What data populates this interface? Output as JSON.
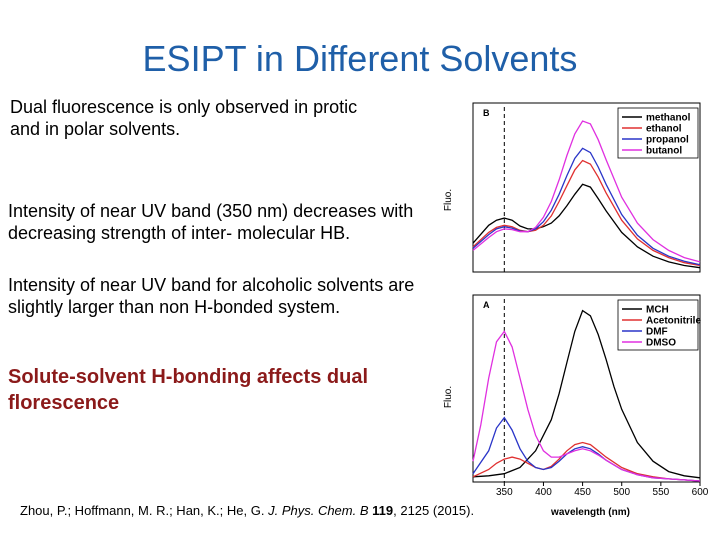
{
  "slide": {
    "title": "ESIPT in Different Solvents",
    "point1": "Dual fluorescence is only observed in protic and in polar solvents.",
    "point2": "Intensity of near UV band (350 nm) decreases with  decreasing strength of inter- molecular HB.",
    "point3": "Intensity of near UV band for alcoholic solvents are slightly larger than non H-bonded system.",
    "point4": "Solute-solvent H-bonding affects dual florescence",
    "citation": {
      "authors": "Zhou, P.; Hoffmann, M. R.; Han, K.; He, G.",
      "journal": "J. Phys. Chem. B",
      "volume": "119",
      "rest": ", 2125 (2015)."
    }
  },
  "chart_data": [
    {
      "type": "line",
      "panel_label": "B",
      "ylabel": "Fluo.",
      "xlim": [
        310,
        600
      ],
      "marker_line_x": 350,
      "series": [
        {
          "name": "methanol",
          "color": "#000000",
          "x": [
            310,
            330,
            340,
            350,
            360,
            370,
            380,
            390,
            400,
            410,
            420,
            430,
            440,
            450,
            460,
            470,
            480,
            500,
            520,
            540,
            560,
            580,
            600
          ],
          "y": [
            0.4,
            0.65,
            0.72,
            0.75,
            0.72,
            0.64,
            0.6,
            0.6,
            0.63,
            0.68,
            0.78,
            0.92,
            1.08,
            1.22,
            1.18,
            1.02,
            0.85,
            0.55,
            0.35,
            0.22,
            0.14,
            0.09,
            0.06
          ]
        },
        {
          "name": "ethanol",
          "color": "#e03030",
          "x": [
            310,
            330,
            340,
            350,
            360,
            370,
            380,
            390,
            400,
            410,
            420,
            430,
            440,
            450,
            460,
            470,
            480,
            500,
            520,
            540,
            560,
            580,
            600
          ],
          "y": [
            0.35,
            0.55,
            0.62,
            0.65,
            0.63,
            0.58,
            0.56,
            0.58,
            0.65,
            0.78,
            0.98,
            1.2,
            1.42,
            1.55,
            1.5,
            1.32,
            1.1,
            0.72,
            0.46,
            0.3,
            0.2,
            0.13,
            0.09
          ]
        },
        {
          "name": "propanol",
          "color": "#2a35c8",
          "x": [
            310,
            330,
            340,
            350,
            360,
            370,
            380,
            390,
            400,
            410,
            420,
            430,
            440,
            450,
            460,
            470,
            480,
            500,
            520,
            540,
            560,
            580,
            600
          ],
          "y": [
            0.33,
            0.52,
            0.6,
            0.63,
            0.61,
            0.57,
            0.56,
            0.6,
            0.7,
            0.86,
            1.08,
            1.34,
            1.58,
            1.72,
            1.66,
            1.46,
            1.22,
            0.8,
            0.51,
            0.33,
            0.22,
            0.15,
            0.1
          ]
        },
        {
          "name": "butanol",
          "color": "#e030e0",
          "x": [
            310,
            330,
            340,
            350,
            360,
            370,
            380,
            390,
            400,
            410,
            420,
            430,
            440,
            450,
            460,
            470,
            480,
            500,
            520,
            540,
            560,
            580,
            600
          ],
          "y": [
            0.3,
            0.48,
            0.56,
            0.6,
            0.59,
            0.56,
            0.56,
            0.62,
            0.76,
            0.98,
            1.28,
            1.62,
            1.92,
            2.1,
            2.06,
            1.84,
            1.56,
            1.04,
            0.68,
            0.45,
            0.3,
            0.2,
            0.14
          ]
        }
      ]
    },
    {
      "type": "line",
      "panel_label": "A",
      "ylabel": "Fluo.",
      "xlabel": "wavelength (nm)",
      "xlim": [
        310,
        600
      ],
      "xticks": [
        350,
        400,
        450,
        500,
        550,
        600
      ],
      "marker_line_x": 350,
      "series": [
        {
          "name": "MCH",
          "color": "#000000",
          "x": [
            310,
            330,
            350,
            370,
            390,
            410,
            420,
            430,
            440,
            450,
            460,
            470,
            480,
            490,
            500,
            520,
            540,
            560,
            580,
            600
          ],
          "y": [
            0.05,
            0.06,
            0.08,
            0.14,
            0.3,
            0.6,
            0.85,
            1.15,
            1.45,
            1.65,
            1.6,
            1.42,
            1.18,
            0.92,
            0.7,
            0.38,
            0.2,
            0.1,
            0.06,
            0.04
          ]
        },
        {
          "name": "Acetonitrile",
          "color": "#e03030",
          "x": [
            310,
            330,
            340,
            350,
            360,
            370,
            380,
            390,
            400,
            410,
            420,
            430,
            440,
            450,
            460,
            470,
            480,
            500,
            520,
            540,
            560,
            580,
            600
          ],
          "y": [
            0.05,
            0.12,
            0.18,
            0.22,
            0.24,
            0.22,
            0.18,
            0.14,
            0.12,
            0.15,
            0.22,
            0.3,
            0.36,
            0.38,
            0.36,
            0.3,
            0.24,
            0.14,
            0.08,
            0.05,
            0.03,
            0.02,
            0.01
          ]
        },
        {
          "name": "DMF",
          "color": "#2a35c8",
          "x": [
            310,
            330,
            340,
            350,
            360,
            370,
            380,
            390,
            400,
            410,
            420,
            430,
            440,
            450,
            460,
            470,
            480,
            500,
            520,
            540,
            560,
            580,
            600
          ],
          "y": [
            0.08,
            0.3,
            0.52,
            0.62,
            0.5,
            0.32,
            0.2,
            0.14,
            0.12,
            0.14,
            0.2,
            0.27,
            0.32,
            0.34,
            0.32,
            0.27,
            0.21,
            0.12,
            0.07,
            0.04,
            0.03,
            0.02,
            0.01
          ]
        },
        {
          "name": "DMSO",
          "color": "#e030e0",
          "x": [
            310,
            320,
            330,
            340,
            350,
            360,
            370,
            380,
            390,
            400,
            410,
            420,
            430,
            440,
            450,
            460,
            470,
            480,
            500,
            520,
            540,
            560,
            580,
            600
          ],
          "y": [
            0.2,
            0.55,
            1.0,
            1.35,
            1.45,
            1.3,
            1.0,
            0.7,
            0.45,
            0.3,
            0.24,
            0.24,
            0.27,
            0.3,
            0.32,
            0.3,
            0.26,
            0.21,
            0.12,
            0.07,
            0.04,
            0.03,
            0.02,
            0.01
          ]
        }
      ]
    }
  ]
}
